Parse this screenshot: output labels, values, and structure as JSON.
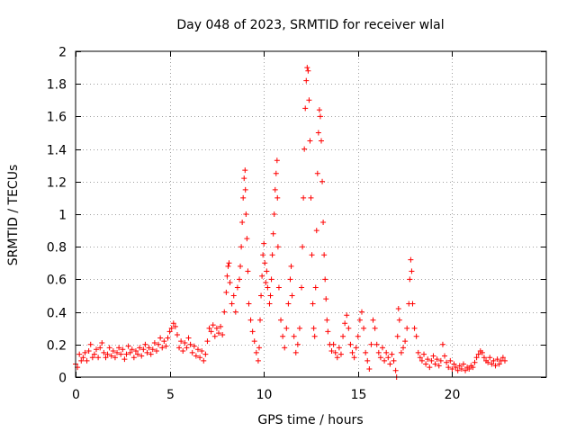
{
  "chart_data": {
    "type": "scatter",
    "title": "Day 048 of 2023, SRMTID for receiver wlal",
    "xlabel": "GPS time / hours",
    "ylabel": "SRMTID / TECUs",
    "xlim": [
      0,
      25
    ],
    "ylim": [
      0,
      2
    ],
    "xticks": [
      0,
      5,
      10,
      15,
      20
    ],
    "xtick_labels": [
      "0",
      "5",
      "10",
      "15",
      "20"
    ],
    "yticks": [
      0,
      0.2,
      0.4,
      0.6,
      0.8,
      1,
      1.2,
      1.4,
      1.6,
      1.8,
      2
    ],
    "ytick_labels": [
      "0",
      "0.2",
      "0.4",
      "0.6",
      "0.8",
      "1",
      "1.2",
      "1.4",
      "1.6",
      "1.8",
      "2"
    ],
    "grid": true,
    "marker": "+",
    "series": [
      {
        "name": "SRMTID",
        "color": "#ff0000",
        "points": [
          [
            0.0,
            0.08
          ],
          [
            0.1,
            0.06
          ],
          [
            0.2,
            0.14
          ],
          [
            0.3,
            0.1
          ],
          [
            0.4,
            0.12
          ],
          [
            0.5,
            0.15
          ],
          [
            0.6,
            0.1
          ],
          [
            0.7,
            0.16
          ],
          [
            0.8,
            0.2
          ],
          [
            0.9,
            0.12
          ],
          [
            1.0,
            0.14
          ],
          [
            1.1,
            0.17
          ],
          [
            1.2,
            0.12
          ],
          [
            1.3,
            0.18
          ],
          [
            1.4,
            0.21
          ],
          [
            1.5,
            0.15
          ],
          [
            1.6,
            0.12
          ],
          [
            1.7,
            0.14
          ],
          [
            1.8,
            0.18
          ],
          [
            1.9,
            0.13
          ],
          [
            2.0,
            0.16
          ],
          [
            2.1,
            0.12
          ],
          [
            2.2,
            0.15
          ],
          [
            2.3,
            0.18
          ],
          [
            2.4,
            0.14
          ],
          [
            2.5,
            0.17
          ],
          [
            2.6,
            0.11
          ],
          [
            2.7,
            0.14
          ],
          [
            2.8,
            0.19
          ],
          [
            2.9,
            0.15
          ],
          [
            3.0,
            0.17
          ],
          [
            3.1,
            0.12
          ],
          [
            3.2,
            0.16
          ],
          [
            3.3,
            0.14
          ],
          [
            3.4,
            0.18
          ],
          [
            3.5,
            0.13
          ],
          [
            3.6,
            0.17
          ],
          [
            3.7,
            0.2
          ],
          [
            3.8,
            0.15
          ],
          [
            3.9,
            0.18
          ],
          [
            4.0,
            0.14
          ],
          [
            4.1,
            0.17
          ],
          [
            4.2,
            0.21
          ],
          [
            4.3,
            0.16
          ],
          [
            4.4,
            0.2
          ],
          [
            4.5,
            0.24
          ],
          [
            4.6,
            0.18
          ],
          [
            4.7,
            0.22
          ],
          [
            4.8,
            0.19
          ],
          [
            4.9,
            0.24
          ],
          [
            5.0,
            0.28
          ],
          [
            5.1,
            0.3
          ],
          [
            5.2,
            0.33
          ],
          [
            5.3,
            0.31
          ],
          [
            5.4,
            0.26
          ],
          [
            5.5,
            0.18
          ],
          [
            5.6,
            0.22
          ],
          [
            5.7,
            0.16
          ],
          [
            5.8,
            0.21
          ],
          [
            5.9,
            0.18
          ],
          [
            6.0,
            0.24
          ],
          [
            6.1,
            0.2
          ],
          [
            6.2,
            0.15
          ],
          [
            6.3,
            0.19
          ],
          [
            6.4,
            0.13
          ],
          [
            6.5,
            0.17
          ],
          [
            6.6,
            0.12
          ],
          [
            6.7,
            0.16
          ],
          [
            6.8,
            0.1
          ],
          [
            6.9,
            0.14
          ],
          [
            7.0,
            0.22
          ],
          [
            7.1,
            0.3
          ],
          [
            7.2,
            0.28
          ],
          [
            7.3,
            0.32
          ],
          [
            7.4,
            0.25
          ],
          [
            7.5,
            0.3
          ],
          [
            7.6,
            0.27
          ],
          [
            7.7,
            0.31
          ],
          [
            7.8,
            0.26
          ],
          [
            7.9,
            0.4
          ],
          [
            8.0,
            0.52
          ],
          [
            8.05,
            0.62
          ],
          [
            8.1,
            0.68
          ],
          [
            8.15,
            0.7
          ],
          [
            8.2,
            0.58
          ],
          [
            8.3,
            0.45
          ],
          [
            8.4,
            0.5
          ],
          [
            8.5,
            0.4
          ],
          [
            8.6,
            0.55
          ],
          [
            8.7,
            0.6
          ],
          [
            8.75,
            0.68
          ],
          [
            8.8,
            0.8
          ],
          [
            8.85,
            0.95
          ],
          [
            8.9,
            1.1
          ],
          [
            8.95,
            1.22
          ],
          [
            9.0,
            1.27
          ],
          [
            9.02,
            1.15
          ],
          [
            9.05,
            1.0
          ],
          [
            9.1,
            0.85
          ],
          [
            9.15,
            0.65
          ],
          [
            9.2,
            0.45
          ],
          [
            9.3,
            0.35
          ],
          [
            9.4,
            0.28
          ],
          [
            9.5,
            0.22
          ],
          [
            9.6,
            0.15
          ],
          [
            9.7,
            0.1
          ],
          [
            9.75,
            0.18
          ],
          [
            9.8,
            0.35
          ],
          [
            9.85,
            0.5
          ],
          [
            9.9,
            0.62
          ],
          [
            9.95,
            0.75
          ],
          [
            10.0,
            0.82
          ],
          [
            10.05,
            0.7
          ],
          [
            10.1,
            0.58
          ],
          [
            10.15,
            0.65
          ],
          [
            10.2,
            0.55
          ],
          [
            10.3,
            0.45
          ],
          [
            10.35,
            0.5
          ],
          [
            10.4,
            0.6
          ],
          [
            10.45,
            0.75
          ],
          [
            10.5,
            0.88
          ],
          [
            10.55,
            1.0
          ],
          [
            10.6,
            1.15
          ],
          [
            10.65,
            1.25
          ],
          [
            10.7,
            1.33
          ],
          [
            10.72,
            1.1
          ],
          [
            10.75,
            0.8
          ],
          [
            10.8,
            0.55
          ],
          [
            10.9,
            0.35
          ],
          [
            11.0,
            0.25
          ],
          [
            11.1,
            0.18
          ],
          [
            11.2,
            0.3
          ],
          [
            11.3,
            0.45
          ],
          [
            11.4,
            0.6
          ],
          [
            11.45,
            0.68
          ],
          [
            11.5,
            0.5
          ],
          [
            11.6,
            0.25
          ],
          [
            11.7,
            0.15
          ],
          [
            11.8,
            0.2
          ],
          [
            11.9,
            0.3
          ],
          [
            12.0,
            0.55
          ],
          [
            12.05,
            0.8
          ],
          [
            12.1,
            1.1
          ],
          [
            12.15,
            1.4
          ],
          [
            12.2,
            1.65
          ],
          [
            12.25,
            1.82
          ],
          [
            12.3,
            1.9
          ],
          [
            12.35,
            1.88
          ],
          [
            12.4,
            1.7
          ],
          [
            12.45,
            1.45
          ],
          [
            12.5,
            1.1
          ],
          [
            12.55,
            0.75
          ],
          [
            12.6,
            0.45
          ],
          [
            12.65,
            0.3
          ],
          [
            12.7,
            0.25
          ],
          [
            12.75,
            0.55
          ],
          [
            12.8,
            0.9
          ],
          [
            12.85,
            1.25
          ],
          [
            12.9,
            1.5
          ],
          [
            12.95,
            1.64
          ],
          [
            13.0,
            1.6
          ],
          [
            13.05,
            1.45
          ],
          [
            13.1,
            1.2
          ],
          [
            13.15,
            0.95
          ],
          [
            13.2,
            0.75
          ],
          [
            13.25,
            0.6
          ],
          [
            13.3,
            0.48
          ],
          [
            13.35,
            0.35
          ],
          [
            13.4,
            0.28
          ],
          [
            13.5,
            0.2
          ],
          [
            13.6,
            0.16
          ],
          [
            13.7,
            0.2
          ],
          [
            13.8,
            0.15
          ],
          [
            13.9,
            0.12
          ],
          [
            14.0,
            0.18
          ],
          [
            14.1,
            0.14
          ],
          [
            14.2,
            0.25
          ],
          [
            14.3,
            0.33
          ],
          [
            14.4,
            0.38
          ],
          [
            14.5,
            0.3
          ],
          [
            14.6,
            0.2
          ],
          [
            14.7,
            0.15
          ],
          [
            14.8,
            0.12
          ],
          [
            14.9,
            0.18
          ],
          [
            15.0,
            0.25
          ],
          [
            15.1,
            0.35
          ],
          [
            15.2,
            0.4
          ],
          [
            15.3,
            0.3
          ],
          [
            15.4,
            0.15
          ],
          [
            15.5,
            0.1
          ],
          [
            15.6,
            0.05
          ],
          [
            15.7,
            0.2
          ],
          [
            15.8,
            0.35
          ],
          [
            15.9,
            0.3
          ],
          [
            16.0,
            0.2
          ],
          [
            16.1,
            0.15
          ],
          [
            16.2,
            0.12
          ],
          [
            16.3,
            0.18
          ],
          [
            16.4,
            0.1
          ],
          [
            16.5,
            0.15
          ],
          [
            16.6,
            0.12
          ],
          [
            16.7,
            0.08
          ],
          [
            16.8,
            0.14
          ],
          [
            16.9,
            0.1
          ],
          [
            17.0,
            0.04
          ],
          [
            17.05,
            0.0
          ],
          [
            17.1,
            0.25
          ],
          [
            17.15,
            0.42
          ],
          [
            17.2,
            0.35
          ],
          [
            17.3,
            0.15
          ],
          [
            17.4,
            0.18
          ],
          [
            17.5,
            0.22
          ],
          [
            17.6,
            0.3
          ],
          [
            17.7,
            0.45
          ],
          [
            17.75,
            0.6
          ],
          [
            17.8,
            0.72
          ],
          [
            17.85,
            0.65
          ],
          [
            17.9,
            0.45
          ],
          [
            18.0,
            0.3
          ],
          [
            18.1,
            0.25
          ],
          [
            18.2,
            0.15
          ],
          [
            18.3,
            0.12
          ],
          [
            18.4,
            0.1
          ],
          [
            18.5,
            0.14
          ],
          [
            18.6,
            0.08
          ],
          [
            18.7,
            0.11
          ],
          [
            18.8,
            0.06
          ],
          [
            18.9,
            0.1
          ],
          [
            19.0,
            0.13
          ],
          [
            19.1,
            0.08
          ],
          [
            19.2,
            0.11
          ],
          [
            19.3,
            0.07
          ],
          [
            19.4,
            0.1
          ],
          [
            19.5,
            0.2
          ],
          [
            19.6,
            0.13
          ],
          [
            19.7,
            0.09
          ],
          [
            19.8,
            0.06
          ],
          [
            19.9,
            0.1
          ],
          [
            20.0,
            0.05
          ],
          [
            20.1,
            0.08
          ],
          [
            20.2,
            0.06
          ],
          [
            20.3,
            0.04
          ],
          [
            20.4,
            0.07
          ],
          [
            20.5,
            0.05
          ],
          [
            20.6,
            0.08
          ],
          [
            20.7,
            0.04
          ],
          [
            20.8,
            0.06
          ],
          [
            20.9,
            0.05
          ],
          [
            21.0,
            0.07
          ],
          [
            21.1,
            0.06
          ],
          [
            21.2,
            0.09
          ],
          [
            21.3,
            0.12
          ],
          [
            21.4,
            0.14
          ],
          [
            21.5,
            0.16
          ],
          [
            21.6,
            0.15
          ],
          [
            21.7,
            0.12
          ],
          [
            21.8,
            0.1
          ],
          [
            21.9,
            0.09
          ],
          [
            22.0,
            0.12
          ],
          [
            22.1,
            0.08
          ],
          [
            22.2,
            0.1
          ],
          [
            22.3,
            0.07
          ],
          [
            22.4,
            0.11
          ],
          [
            22.5,
            0.08
          ],
          [
            22.6,
            0.1
          ],
          [
            22.7,
            0.12
          ],
          [
            22.8,
            0.1
          ]
        ]
      }
    ]
  }
}
